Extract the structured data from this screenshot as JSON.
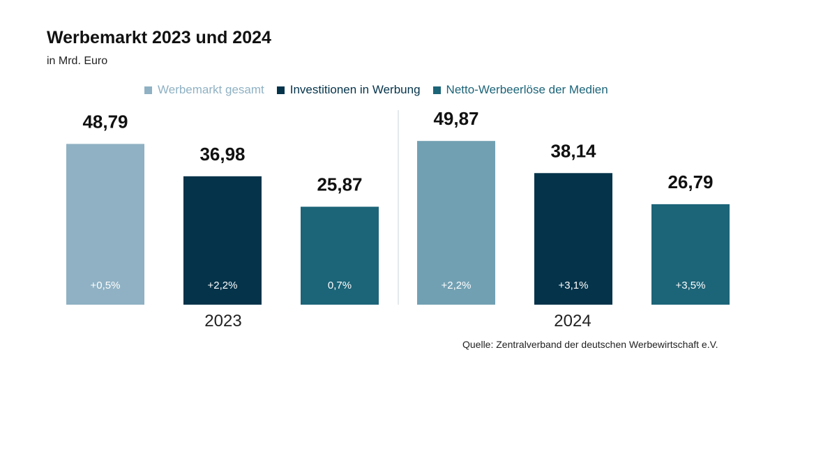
{
  "header": {
    "title": "Werbemarkt 2023 und 2024",
    "subtitle": "in Mrd. Euro"
  },
  "colors": {
    "werbemarkt_gesamt_2023": "#8fb1c3",
    "werbemarkt_gesamt_2024": "#72a0b3",
    "investitionen": "#04334a",
    "netto": "#1c6478",
    "divider": "#c8d3d9"
  },
  "chart_data": {
    "type": "bar",
    "title": "Werbemarkt 2023 und 2024",
    "subtitle": "in Mrd. Euro",
    "categories": [
      "2023",
      "2024"
    ],
    "series": [
      {
        "name": "Werbemarkt gesamt",
        "values": [
          48.79,
          49.87
        ],
        "labels": [
          "48,79",
          "49,87"
        ],
        "changes": [
          "+0,5%",
          "+2,2%"
        ]
      },
      {
        "name": "Investitionen in Werbung",
        "values": [
          36.98,
          38.14
        ],
        "labels": [
          "36,98",
          "38,14"
        ],
        "changes": [
          "+2,2%",
          "+3,1%"
        ]
      },
      {
        "name": "Netto-Werbeerlöse der Medien",
        "values": [
          25.87,
          26.79
        ],
        "labels": [
          "25,87",
          "26,79"
        ],
        "changes": [
          "0,7%",
          "+3,5%"
        ]
      }
    ],
    "legend_position": "top",
    "grid": false
  },
  "source": "Quelle: Zentralverband der deutschen Werbewirtschaft e.V."
}
